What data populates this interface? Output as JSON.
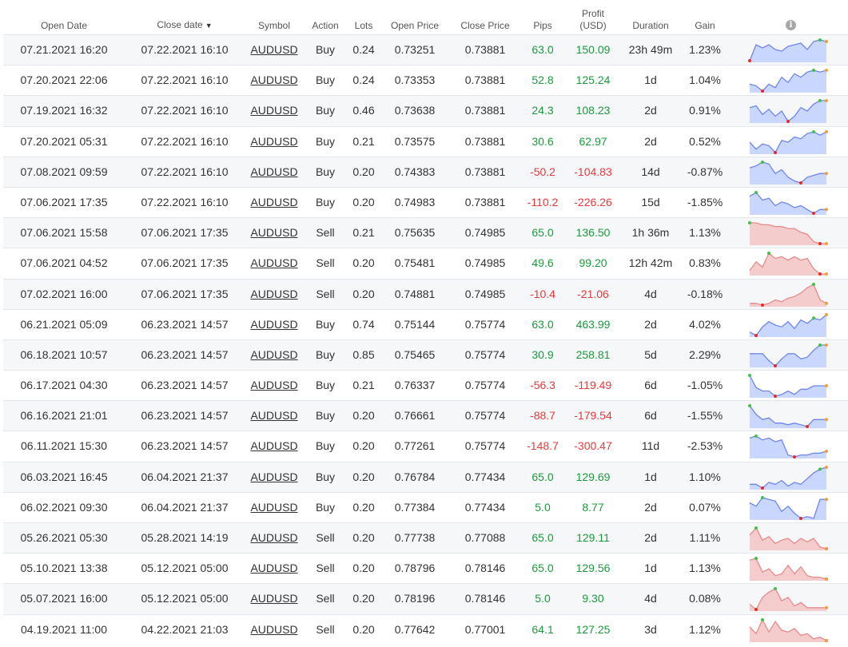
{
  "header": {
    "open_date": "Open Date",
    "close_date": "Close date",
    "close_date_sort": "▼",
    "symbol": "Symbol",
    "action": "Action",
    "lots": "Lots",
    "open_price": "Open Price",
    "close_price": "Close Price",
    "pips": "Pips",
    "profit_l1": "Profit",
    "profit_l2": "(USD)",
    "duration": "Duration",
    "gain": "Gain",
    "info": "i"
  },
  "colors": {
    "positive": "#1d9a3e",
    "negative": "#e23c3c",
    "buy_fill": "#c9d7ff",
    "buy_line": "#6f86ee",
    "sell_fill": "#f4cccc",
    "sell_line": "#e98a8a",
    "high_dot": "#3fc24a",
    "low_dot": "#e62a2a",
    "end_dot": "#f0a03a"
  },
  "rows": [
    {
      "open": "07.21.2021 16:20",
      "close": "07.22.2021 16:10",
      "symbol": "AUDUSD",
      "action": "Buy",
      "lots": "0.24",
      "open_price": "0.73251",
      "close_price": "0.73881",
      "pips": "63.0",
      "profit": "150.09",
      "duration": "23h 49m",
      "gain": "1.23%",
      "positive": true,
      "spark": [
        0,
        10,
        8,
        10,
        7,
        6,
        9,
        10,
        11,
        7,
        12,
        13,
        12
      ]
    },
    {
      "open": "07.20.2021 22:06",
      "close": "07.22.2021 16:10",
      "symbol": "AUDUSD",
      "action": "Buy",
      "lots": "0.24",
      "open_price": "0.73353",
      "close_price": "0.73881",
      "pips": "52.8",
      "profit": "125.24",
      "duration": "1d",
      "gain": "1.04%",
      "positive": true,
      "spark": [
        4,
        3,
        0,
        4,
        2,
        8,
        5,
        10,
        8,
        11,
        12,
        11,
        12
      ]
    },
    {
      "open": "07.19.2021 16:32",
      "close": "07.22.2021 16:10",
      "symbol": "AUDUSD",
      "action": "Buy",
      "lots": "0.46",
      "open_price": "0.73638",
      "close_price": "0.73881",
      "pips": "24.3",
      "profit": "108.23",
      "duration": "2d",
      "gain": "0.91%",
      "positive": true,
      "spark": [
        8,
        9,
        4,
        7,
        3,
        6,
        0,
        3,
        8,
        6,
        10,
        12,
        12
      ]
    },
    {
      "open": "07.20.2021 05:31",
      "close": "07.22.2021 16:10",
      "symbol": "AUDUSD",
      "action": "Buy",
      "lots": "0.21",
      "open_price": "0.73575",
      "close_price": "0.73881",
      "pips": "30.6",
      "profit": "62.97",
      "duration": "2d",
      "gain": "0.52%",
      "positive": true,
      "spark": [
        6,
        2,
        5,
        4,
        0,
        7,
        6,
        9,
        8,
        11,
        12,
        10,
        12
      ]
    },
    {
      "open": "07.08.2021 09:59",
      "close": "07.22.2021 16:10",
      "symbol": "AUDUSD",
      "action": "Buy",
      "lots": "0.20",
      "open_price": "0.74383",
      "close_price": "0.73881",
      "pips": "-50.2",
      "profit": "-104.83",
      "duration": "14d",
      "gain": "-0.87%",
      "positive": false,
      "spark": [
        8,
        9,
        11,
        10,
        5,
        7,
        3,
        1,
        0,
        3,
        4,
        5,
        5
      ]
    },
    {
      "open": "07.06.2021 17:35",
      "close": "07.22.2021 16:10",
      "symbol": "AUDUSD",
      "action": "Buy",
      "lots": "0.20",
      "open_price": "0.74983",
      "close_price": "0.73881",
      "pips": "-110.2",
      "profit": "-226.26",
      "duration": "15d",
      "gain": "-1.85%",
      "positive": false,
      "spark": [
        9,
        11,
        7,
        8,
        4,
        6,
        5,
        3,
        4,
        2,
        0,
        2,
        2
      ]
    },
    {
      "open": "07.06.2021 15:58",
      "close": "07.06.2021 17:35",
      "symbol": "AUDUSD",
      "action": "Sell",
      "lots": "0.21",
      "open_price": "0.75635",
      "close_price": "0.74985",
      "pips": "65.0",
      "profit": "136.50",
      "duration": "1h 36m",
      "gain": "1.13%",
      "positive": true,
      "spark": [
        12,
        12,
        11,
        11,
        10,
        10,
        9,
        9,
        7,
        6,
        2,
        1,
        1
      ]
    },
    {
      "open": "07.06.2021 04:52",
      "close": "07.06.2021 17:35",
      "symbol": "AUDUSD",
      "action": "Sell",
      "lots": "0.20",
      "open_price": "0.75481",
      "close_price": "0.74985",
      "pips": "49.6",
      "profit": "99.20",
      "duration": "12h 42m",
      "gain": "0.83%",
      "positive": true,
      "spark": [
        2,
        7,
        4,
        12,
        9,
        10,
        8,
        10,
        8,
        9,
        3,
        0,
        0
      ]
    },
    {
      "open": "07.02.2021 16:00",
      "close": "07.06.2021 17:35",
      "symbol": "AUDUSD",
      "action": "Sell",
      "lots": "0.20",
      "open_price": "0.74881",
      "close_price": "0.74985",
      "pips": "-10.4",
      "profit": "-21.06",
      "duration": "4d",
      "gain": "-0.18%",
      "positive": false,
      "spark": [
        1,
        1,
        0,
        1,
        3,
        2,
        4,
        5,
        7,
        10,
        12,
        3,
        1
      ]
    },
    {
      "open": "06.21.2021 05:09",
      "close": "06.23.2021 14:57",
      "symbol": "AUDUSD",
      "action": "Buy",
      "lots": "0.74",
      "open_price": "0.75144",
      "close_price": "0.75774",
      "pips": "63.0",
      "profit": "463.99",
      "duration": "2d",
      "gain": "4.02%",
      "positive": true,
      "spark": [
        3,
        1,
        6,
        9,
        7,
        6,
        9,
        5,
        10,
        8,
        11,
        10,
        13
      ]
    },
    {
      "open": "06.18.2021 10:57",
      "close": "06.23.2021 14:57",
      "symbol": "AUDUSD",
      "action": "Buy",
      "lots": "0.85",
      "open_price": "0.75465",
      "close_price": "0.75774",
      "pips": "30.9",
      "profit": "258.81",
      "duration": "5d",
      "gain": "2.29%",
      "positive": true,
      "spark": [
        7,
        7,
        7,
        3,
        0,
        4,
        7,
        7,
        4,
        5,
        9,
        12,
        12
      ]
    },
    {
      "open": "06.17.2021 04:30",
      "close": "06.23.2021 14:57",
      "symbol": "AUDUSD",
      "action": "Buy",
      "lots": "0.21",
      "open_price": "0.76337",
      "close_price": "0.75774",
      "pips": "-56.3",
      "profit": "-119.49",
      "duration": "6d",
      "gain": "-1.05%",
      "positive": false,
      "spark": [
        12,
        5,
        3,
        3,
        0,
        1,
        3,
        1,
        4,
        4,
        6,
        6,
        6
      ]
    },
    {
      "open": "06.16.2021 21:01",
      "close": "06.23.2021 14:57",
      "symbol": "AUDUSD",
      "action": "Buy",
      "lots": "0.20",
      "open_price": "0.76661",
      "close_price": "0.75774",
      "pips": "-88.7",
      "profit": "-179.54",
      "duration": "6d",
      "gain": "-1.55%",
      "positive": false,
      "spark": [
        12,
        7,
        4,
        5,
        2,
        2,
        1,
        2,
        1,
        0,
        4,
        4,
        4
      ]
    },
    {
      "open": "06.11.2021 15:30",
      "close": "06.23.2021 14:57",
      "symbol": "AUDUSD",
      "action": "Buy",
      "lots": "0.20",
      "open_price": "0.77261",
      "close_price": "0.75774",
      "pips": "-148.7",
      "profit": "-300.47",
      "duration": "11d",
      "gain": "-2.53%",
      "positive": false,
      "spark": [
        10,
        11,
        9,
        10,
        8,
        9,
        1,
        0,
        1,
        1,
        2,
        2,
        3
      ]
    },
    {
      "open": "06.03.2021 16:45",
      "close": "06.04.2021 21:37",
      "symbol": "AUDUSD",
      "action": "Buy",
      "lots": "0.20",
      "open_price": "0.76784",
      "close_price": "0.77434",
      "pips": "65.0",
      "profit": "129.69",
      "duration": "1d",
      "gain": "1.10%",
      "positive": true,
      "spark": [
        2,
        2,
        0,
        3,
        2,
        4,
        1,
        3,
        2,
        5,
        8,
        10,
        11
      ]
    },
    {
      "open": "06.02.2021 09:30",
      "close": "06.04.2021 21:37",
      "symbol": "AUDUSD",
      "action": "Buy",
      "lots": "0.20",
      "open_price": "0.77384",
      "close_price": "0.77434",
      "pips": "5.0",
      "profit": "8.77",
      "duration": "2d",
      "gain": "0.07%",
      "positive": true,
      "spark": [
        9,
        7,
        12,
        11,
        10,
        4,
        7,
        3,
        0,
        1,
        0,
        11,
        11
      ]
    },
    {
      "open": "05.26.2021 05:30",
      "close": "05.28.2021 14:19",
      "symbol": "AUDUSD",
      "action": "Sell",
      "lots": "0.20",
      "open_price": "0.77738",
      "close_price": "0.77088",
      "pips": "65.0",
      "profit": "129.11",
      "duration": "2d",
      "gain": "1.11%",
      "positive": true,
      "spark": [
        8,
        12,
        5,
        7,
        3,
        5,
        6,
        3,
        6,
        4,
        6,
        1,
        0
      ]
    },
    {
      "open": "05.10.2021 13:38",
      "close": "05.12.2021 05:00",
      "symbol": "AUDUSD",
      "action": "Sell",
      "lots": "0.20",
      "open_price": "0.78796",
      "close_price": "0.78146",
      "pips": "65.0",
      "profit": "129.56",
      "duration": "1d",
      "gain": "1.13%",
      "positive": true,
      "spark": [
        11,
        12,
        4,
        6,
        2,
        3,
        8,
        3,
        7,
        2,
        1,
        1,
        0
      ]
    },
    {
      "open": "05.07.2021 16:00",
      "close": "05.12.2021 05:00",
      "symbol": "AUDUSD",
      "action": "Sell",
      "lots": "0.20",
      "open_price": "0.78196",
      "close_price": "0.78146",
      "pips": "5.0",
      "profit": "9.30",
      "duration": "4d",
      "gain": "0.08%",
      "positive": true,
      "spark": [
        3,
        0,
        7,
        10,
        12,
        5,
        7,
        2,
        4,
        1,
        1,
        1,
        1
      ]
    },
    {
      "open": "04.19.2021 11:00",
      "close": "04.22.2021 21:03",
      "symbol": "AUDUSD",
      "action": "Sell",
      "lots": "0.20",
      "open_price": "0.77642",
      "close_price": "0.77001",
      "pips": "64.1",
      "profit": "127.25",
      "duration": "3d",
      "gain": "1.12%",
      "positive": true,
      "spark": [
        8,
        4,
        12,
        5,
        11,
        6,
        5,
        7,
        3,
        4,
        1,
        2,
        0
      ]
    }
  ]
}
